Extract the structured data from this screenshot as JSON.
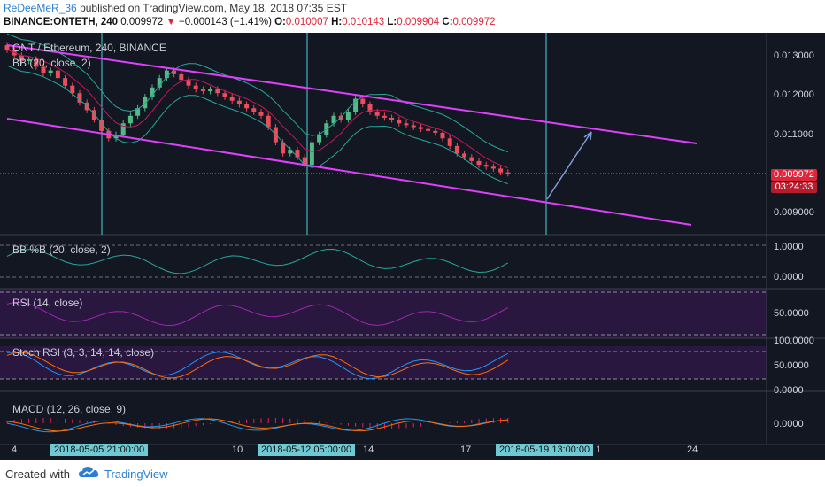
{
  "header": {
    "user": "ReDeeMeR_36",
    "published": "published on TradingView.com, May 18, 2018 07:35 EST",
    "symbol": "BINANCE:ONTETH, 240",
    "last": "0.009972",
    "change_arrow": "▼",
    "change": "−0.000143 (−1.41%)",
    "o_label": "O:",
    "o": "0.010007",
    "h_label": "H:",
    "h": "0.010143",
    "l_label": "L:",
    "l": "0.009904",
    "c_label": "C:",
    "c": "0.009972"
  },
  "panes": {
    "price": {
      "title": "ONT / Ethereum, 240, BINANCE",
      "indicator": "BB (20, close, 2)",
      "ticks": [
        "0.013000",
        "0.012000",
        "0.011000",
        "0.010000",
        "0.009000"
      ],
      "last_price": "0.009972",
      "countdown": "03:24:33"
    },
    "bbpb": {
      "title": "BB %B (20, close, 2)",
      "ticks": [
        "1.0000",
        "0.0000"
      ]
    },
    "rsi": {
      "title": "RSI (14, close)",
      "ticks": [
        "50.0000"
      ]
    },
    "stoch": {
      "title": "Stoch RSI (3, 3, 14, 14, close)",
      "ticks": [
        "100.0000",
        "50.0000",
        "0.0000"
      ]
    },
    "macd": {
      "title": "MACD (12, 26, close, 9)",
      "ticks": [
        "0.0000"
      ]
    }
  },
  "xaxis": {
    "labels": [
      "4",
      "10",
      "14",
      "17",
      "1",
      "24"
    ],
    "time_boxes": [
      "2018-05-05 21:00:00",
      "2018-05-12 05:00:00",
      "2018-05-19 13:00:00"
    ]
  },
  "footer": {
    "created": "Created with",
    "brand": "TradingView"
  },
  "colors": {
    "up": "#53b987",
    "down": "#eb4d5c",
    "bb_band": "#26a69a",
    "bb_basis": "#c2185b",
    "channel": "#e040fb",
    "arrow": "#7e9cd8",
    "vline": "#4dd0e1",
    "rsi": "#9c27b0",
    "stoch_k": "#2196f3",
    "stoch_d": "#ff6d00"
  },
  "chart_data": {
    "type": "candlestick",
    "title": "ONT / Ethereum, 240, BINANCE",
    "ylim": [
      0.00835,
      0.0137
    ],
    "close_series": [
      0.01325,
      0.0131,
      0.01295,
      0.013,
      0.0128,
      0.01262,
      0.0127,
      0.0125,
      0.0123,
      0.0121,
      0.01185,
      0.01165,
      0.0114,
      0.0111,
      0.0109,
      0.011,
      0.0113,
      0.0115,
      0.0117,
      0.012,
      0.01225,
      0.0125,
      0.0127,
      0.0126,
      0.01245,
      0.0123,
      0.0122,
      0.01215,
      0.0122,
      0.0121,
      0.012,
      0.0119,
      0.0118,
      0.0117,
      0.0116,
      0.0115,
      0.0112,
      0.0108,
      0.0105,
      0.0106,
      0.0104,
      0.0102,
      0.0108,
      0.011,
      0.0113,
      0.0115,
      0.0114,
      0.0116,
      0.01195,
      0.0118,
      0.0116,
      0.0115,
      0.01145,
      0.0114,
      0.0113,
      0.01125,
      0.0112,
      0.01115,
      0.0111,
      0.01105,
      0.0109,
      0.0107,
      0.0105,
      0.0104,
      0.0103,
      0.0102,
      0.01015,
      0.0101,
      0.01,
      0.00997
    ],
    "current_price": 0.009972
  }
}
